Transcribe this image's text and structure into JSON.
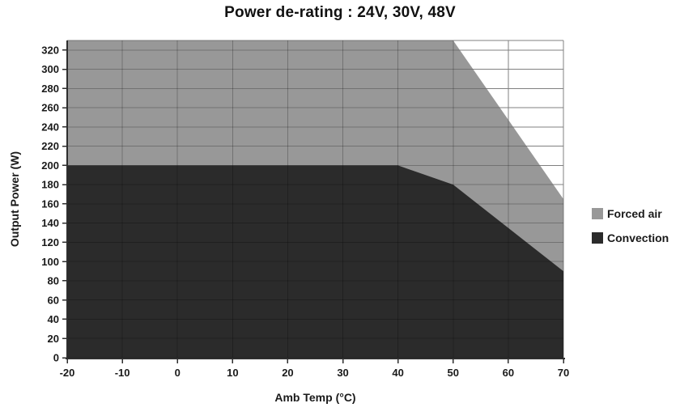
{
  "chart_data": {
    "type": "area",
    "title": "Power de-rating : 24V, 30V, 48V",
    "xlabel": "Amb Temp (°C)",
    "ylabel": "Output Power (W)",
    "xlim": [
      -20,
      70
    ],
    "ylim": [
      0,
      330
    ],
    "x_ticks": [
      -20,
      -10,
      0,
      10,
      20,
      30,
      40,
      50,
      60,
      70
    ],
    "y_ticks": [
      0,
      20,
      40,
      60,
      80,
      100,
      120,
      140,
      160,
      180,
      200,
      220,
      240,
      260,
      280,
      300,
      320
    ],
    "grid": true,
    "legend_position": "right",
    "colors": {
      "gridline": "#808080",
      "axis": "#2e2e2e",
      "text": "#1a1a1a",
      "plot_background": "#ffffff"
    },
    "series": [
      {
        "name": "Forced air",
        "color": "#989898",
        "points": [
          [
            -20,
            330
          ],
          [
            50,
            330
          ],
          [
            70,
            165
          ]
        ]
      },
      {
        "name": "Convection",
        "color": "#2b2b2b",
        "points": [
          [
            -20,
            200
          ],
          [
            40,
            200
          ],
          [
            50,
            180
          ],
          [
            70,
            90
          ]
        ]
      }
    ]
  }
}
